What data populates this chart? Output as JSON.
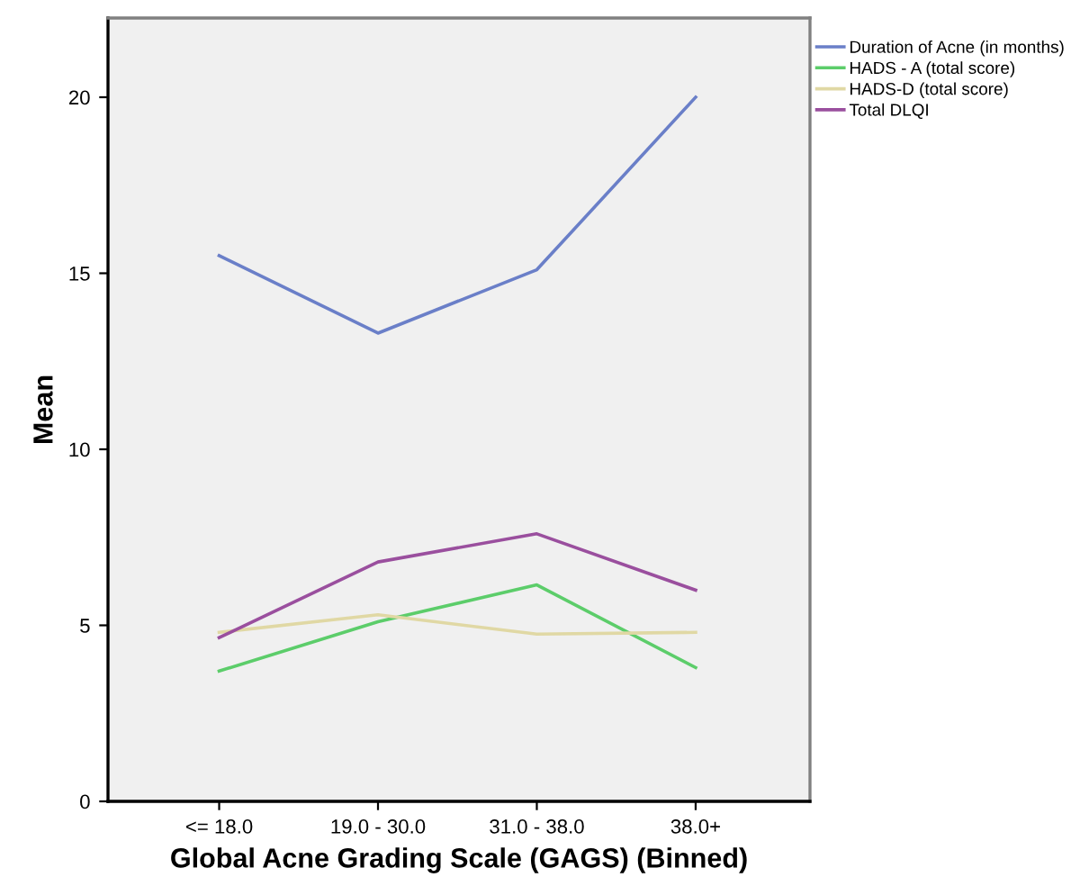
{
  "chart_data": {
    "type": "line",
    "xlabel": "Global Acne Grading Scale (GAGS) (Binned)",
    "ylabel": "Mean",
    "categories": [
      "<= 18.0",
      "19.0 - 30.0",
      "31.0 - 38.0",
      "38.0+"
    ],
    "series": [
      {
        "name": "Duration of Acne (in months)",
        "color": "#6a7fc8",
        "values": [
          15.5,
          13.3,
          15.1,
          20.0
        ]
      },
      {
        "name": "HADS - A (total score)",
        "color": "#5ccd6a",
        "values": [
          3.7,
          5.1,
          6.15,
          3.8
        ]
      },
      {
        "name": "HADS-D (total score)",
        "color": "#e0d8a4",
        "values": [
          4.8,
          5.3,
          4.75,
          4.8
        ]
      },
      {
        "name": "Total DLQI",
        "color": "#9a4f9e",
        "values": [
          4.65,
          6.8,
          7.6,
          6.0
        ]
      }
    ],
    "ylim": [
      0,
      22.25
    ],
    "yticks": [
      0,
      5,
      10,
      15,
      20
    ],
    "grid": false,
    "legend": "top right",
    "marker": "none",
    "line_style": "solid"
  }
}
